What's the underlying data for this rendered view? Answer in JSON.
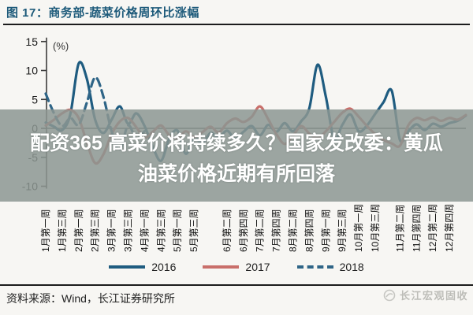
{
  "figure_title": "图 17：商务部-蔬菜价格周环比涨幅",
  "overlay": {
    "line1": "配资365 高菜价将持续多久？国家发改委：黄瓜",
    "line2": "油菜价格近期有所回落"
  },
  "footer": {
    "source": "资料来源：Wind，长江证券研究所",
    "watermark": "长江宏观固收"
  },
  "chart_data": {
    "type": "line",
    "title": "商务部-蔬菜价格周环比涨幅",
    "unit_label": "(%)",
    "ylim": [
      -10,
      15
    ],
    "yticks": [
      15,
      10,
      5,
      0,
      -5,
      -10
    ],
    "x_unit": "week of year (1-52), labels rotated vertical reading bottom-to-top",
    "xtick_labels": [
      "1月第一周",
      "1月第三周",
      "2月第一周",
      "2月第三周",
      "3月第一周",
      "3月第三周",
      "4月第一周",
      "4月第三周",
      "5月第一周",
      "5月第三周",
      "6月第二周",
      "6月第四周",
      "7月第二周",
      "7月第四周",
      "8月第二周",
      "8月第四周",
      "9月第一周",
      "9月第三周",
      "10月第一周",
      "10月第三周",
      "11月第二周",
      "11月第四周",
      "12月第二周",
      "12月第四周"
    ],
    "xtick_weeks": [
      1,
      3,
      5,
      7,
      9,
      11,
      13,
      15,
      17,
      19,
      23,
      25,
      27,
      29,
      31,
      33,
      35,
      37,
      39,
      41,
      44,
      46,
      48,
      50
    ],
    "grid": "zero-line only",
    "legend_position": "bottom-center",
    "series": [
      {
        "name": "2016",
        "style": "solid",
        "color": "#1f5c80",
        "start_week": 1,
        "values": [
          1.0,
          0.3,
          -0.3,
          2.5,
          11.2,
          8.5,
          1.5,
          -0.8,
          1.5,
          3.8,
          0.8,
          2.6,
          0.4,
          -3.2,
          -5.6,
          -1.8,
          -0.4,
          -4.4,
          -1.6,
          -2.6,
          -0.8,
          -1.6,
          -0.4,
          -1.8,
          -0.6,
          0.4,
          -1.2,
          0.6,
          -0.6,
          0.9,
          -0.5,
          1.2,
          3.5,
          11.0,
          5.5,
          -1.8,
          0.6,
          2.4,
          -0.5,
          0.5,
          2.5,
          4.5,
          6.5,
          -2.0,
          -0.5,
          0.7,
          -0.3,
          0.8,
          0.3,
          0.9,
          1.3,
          2.2
        ]
      },
      {
        "name": "2017",
        "style": "solid",
        "color": "#c96f6a",
        "start_week": 1,
        "values": [
          0.5,
          1.5,
          2.6,
          3.2,
          1.8,
          -2.5,
          -6.0,
          -4.5,
          -1.0,
          1.2,
          1.8,
          0.2,
          -1.6,
          -0.6,
          0.5,
          -1.2,
          -1.7,
          -0.5,
          -1.5,
          -0.7,
          0.3,
          -0.7,
          0.9,
          1.7,
          1.1,
          2.0,
          3.8,
          1.6,
          -1.0,
          -2.7,
          -1.3,
          0.4,
          -0.9,
          -1.7,
          -0.5,
          1.1,
          2.7,
          3.4,
          2.0,
          0.4,
          -1.0,
          -2.0,
          -2.6,
          -3.0,
          0.5,
          1.8,
          1.4,
          1.9,
          1.3,
          1.8,
          1.5,
          2.3
        ]
      },
      {
        "name": "2018",
        "style": "dashed",
        "color": "#2f6587",
        "start_week": 1,
        "values": [
          6.0,
          2.6,
          0.4,
          1.8,
          0.6,
          4.5,
          8.8,
          5.5,
          -0.5,
          -3.6,
          0.5,
          -1.8,
          -0.5
        ]
      }
    ]
  },
  "colors": {
    "title": "#1d5a7a",
    "overlay_bg": "rgba(140,150,146,0.85)",
    "overlay_text": "#ffffff",
    "axis_text": "#1a1a1a",
    "zero_line": "#4a4a4a",
    "rule": "#1c1c1c",
    "watermark": "#bdbdb8",
    "background": "#f7f6f3"
  }
}
